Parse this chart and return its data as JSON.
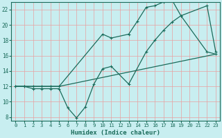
{
  "xlabel": "Humidex (Indice chaleur)",
  "bg_color": "#c8eef0",
  "line_color": "#1a6b5a",
  "grid_color": "#e8a0a0",
  "xlim": [
    -0.5,
    23.5
  ],
  "ylim": [
    7.5,
    23.0
  ],
  "xticks": [
    0,
    1,
    2,
    3,
    4,
    5,
    6,
    7,
    8,
    9,
    10,
    11,
    12,
    13,
    14,
    15,
    16,
    17,
    18,
    19,
    20,
    21,
    22,
    23
  ],
  "yticks": [
    8,
    10,
    12,
    14,
    16,
    18,
    20,
    22
  ],
  "line1_x": [
    0,
    1,
    2,
    3,
    4,
    5,
    23
  ],
  "line1_y": [
    12.0,
    12.0,
    12.0,
    12.0,
    12.0,
    12.0,
    16.2
  ],
  "line2_x": [
    0,
    1,
    2,
    3,
    4,
    5,
    10,
    11,
    13,
    14,
    15,
    16,
    17,
    18,
    19,
    22,
    23
  ],
  "line2_y": [
    12.0,
    12.0,
    12.0,
    12.0,
    12.0,
    12.0,
    18.8,
    18.3,
    18.8,
    20.5,
    22.3,
    22.5,
    23.0,
    23.2,
    21.2,
    16.5,
    16.2
  ],
  "line3_x": [
    0,
    1,
    2,
    3,
    4,
    5,
    6,
    7,
    8,
    9,
    10,
    11,
    13,
    15,
    16,
    17,
    18,
    19,
    22,
    23
  ],
  "line3_y": [
    12.0,
    12.0,
    11.7,
    11.7,
    11.7,
    11.7,
    9.2,
    7.9,
    9.3,
    12.3,
    14.3,
    14.6,
    12.3,
    16.5,
    18.0,
    19.3,
    20.4,
    21.2,
    22.5,
    16.5
  ]
}
